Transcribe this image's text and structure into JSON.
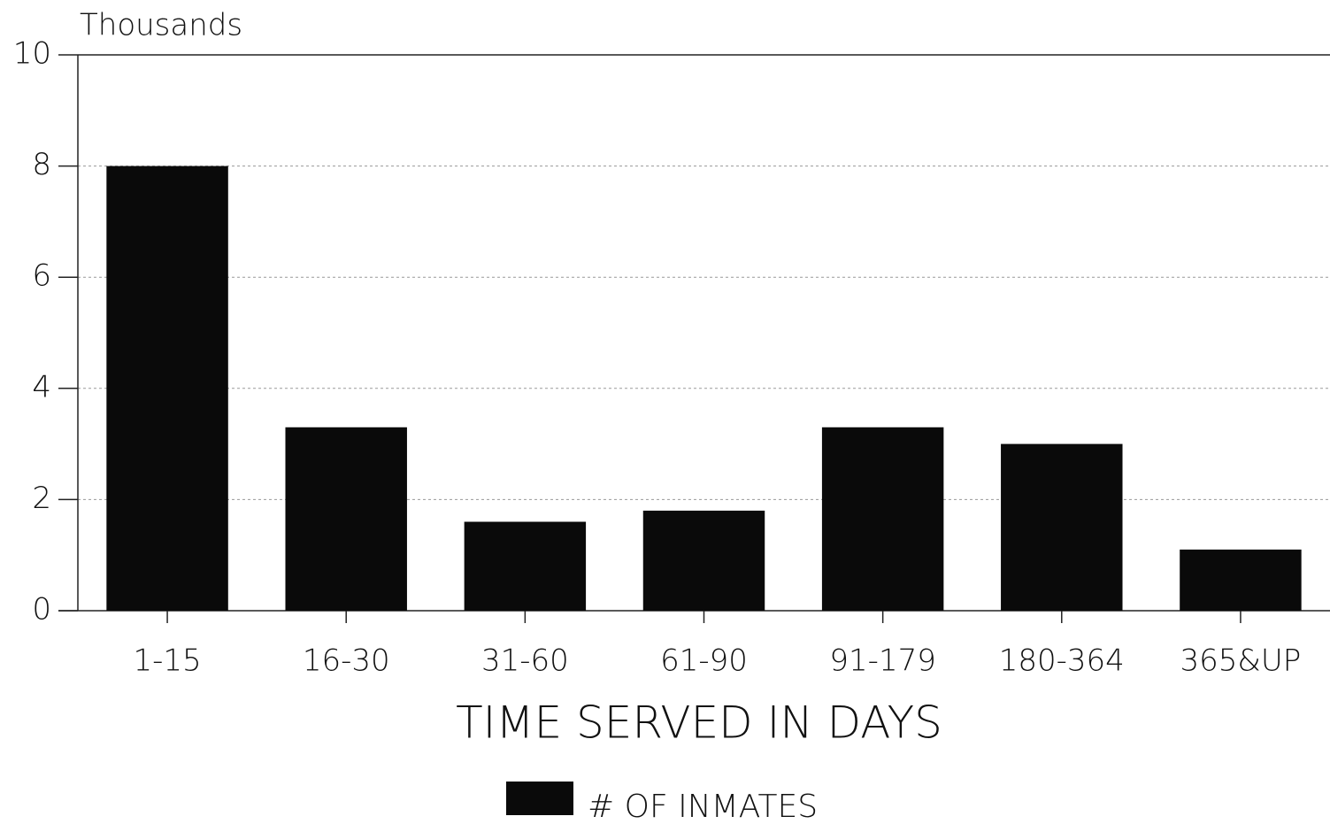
{
  "chart_data": {
    "type": "bar",
    "ylabel": "Thousands",
    "xlabel": "TIME SERVED IN DAYS",
    "categories": [
      "1-15",
      "16-30",
      "31-60",
      "61-90",
      "91-179",
      "180-364",
      "365&UP"
    ],
    "series": [
      {
        "name": "# OF INMATES",
        "color": "#0a0a0a",
        "values": [
          8.0,
          3.3,
          1.6,
          1.8,
          3.3,
          3.0,
          1.1
        ]
      }
    ],
    "ylim": [
      0,
      10
    ],
    "yticks": [
      0,
      2,
      4,
      6,
      8,
      10
    ],
    "grid": true,
    "legend": "bottom"
  }
}
